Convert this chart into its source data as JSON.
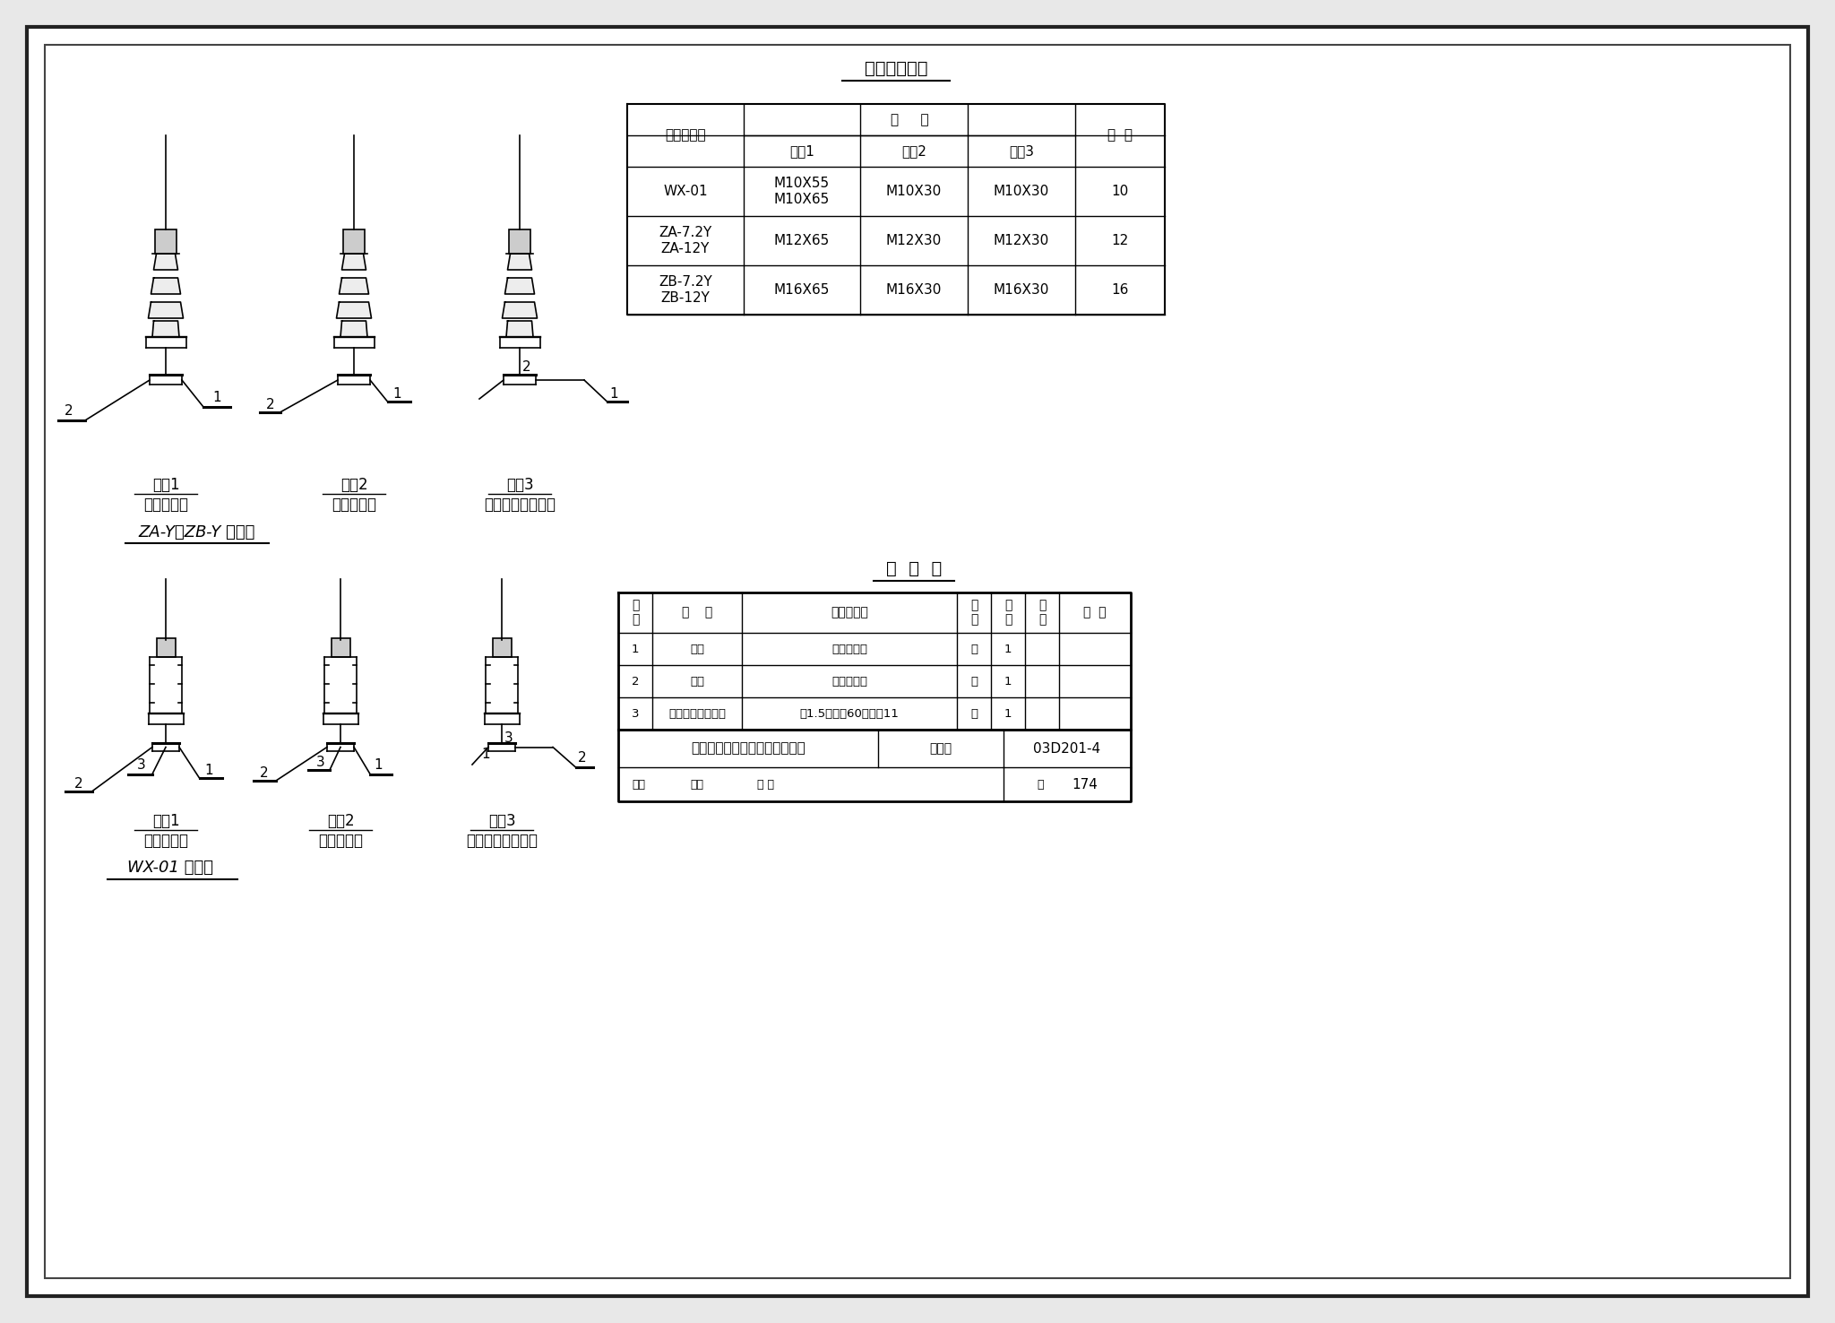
{
  "bg_color": "#f0f0f0",
  "border_color": "#333333",
  "title_table1": "紧固件选择表",
  "title_table2": "明  细  表",
  "table1_headers": [
    "绝缘子型号",
    "螺    栓",
    "",
    "",
    "垫  圈"
  ],
  "table1_subheaders": [
    "方式1",
    "方式2",
    "方式3"
  ],
  "table1_rows": [
    [
      "WX-01",
      "M10X55\nM10X65",
      "M10X30",
      "M10X30",
      "10"
    ],
    [
      "ZA-7.2Y\nZA-12Y",
      "M12X65",
      "M12X30",
      "M12X30",
      "12"
    ],
    [
      "ZB-7.2Y\nZB-12Y",
      "M16X65",
      "M16X30",
      "M16X30",
      "16"
    ]
  ],
  "table2_headers": [
    "编\n号",
    "名    称",
    "型号及规格",
    "单\n位",
    "数\n量",
    "页\n次",
    "备  注"
  ],
  "table2_rows": [
    [
      "1",
      "螺栓",
      "见紧固件表",
      "个",
      "1",
      "",
      ""
    ],
    [
      "2",
      "垫圈",
      "见紧固件表",
      "个",
      "1",
      "",
      ""
    ],
    [
      "3",
      "橡胶或石棉纸垫圈",
      "厚1.5，外径60，内径11",
      "个",
      "1",
      "",
      ""
    ]
  ],
  "footer_left": "户内式支柱绝缘子在支架上安装",
  "footer_right": "图集号",
  "footer_code": "03D201-4",
  "footer_page": "174",
  "label1_name": "ZA-Y、ZB-Y 绝缘子",
  "label2_name": "WX-01 绝缘子",
  "drawings_row1": [
    {
      "title": "方式1",
      "subtitle": "在双角钢上"
    },
    {
      "title": "方式2",
      "subtitle": "在双扁钢上"
    },
    {
      "title": "方式3",
      "subtitle": "在单角钢或槽钢上"
    }
  ],
  "drawings_row2": [
    {
      "title": "方式1",
      "subtitle": "在双角钢上"
    },
    {
      "title": "方式2",
      "subtitle": "在双扁钢上"
    },
    {
      "title": "方式3",
      "subtitle": "在单角钢或槽钢上"
    }
  ]
}
